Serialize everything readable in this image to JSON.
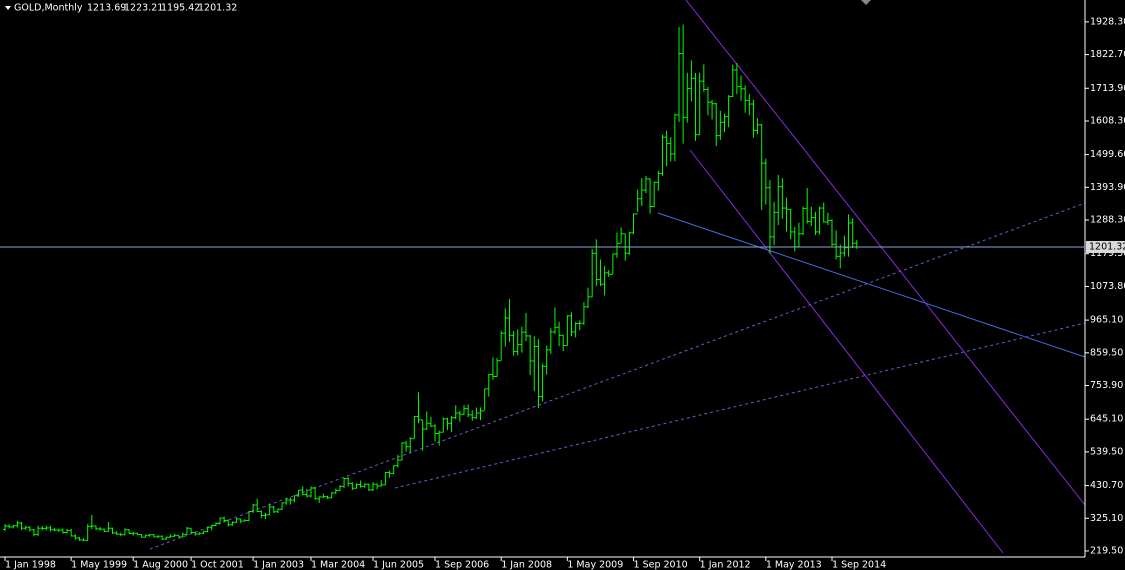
{
  "chart_data": {
    "type": "ohlc",
    "title": "GOLD,Monthly",
    "color": "#00ff00",
    "categories": [
      "1 Jan 1998",
      null,
      null,
      null,
      null,
      null,
      null,
      null,
      null,
      null,
      null,
      null,
      null,
      null,
      null,
      null,
      "1 May 1999",
      null,
      null,
      null,
      null,
      null,
      null,
      null,
      null,
      null,
      null,
      null,
      null,
      null,
      null,
      "1 Aug 2000",
      null,
      null,
      null,
      null,
      null,
      null,
      null,
      null,
      null,
      null,
      null,
      null,
      null,
      "1 Oct 2001",
      null,
      null,
      null,
      null,
      null,
      null,
      null,
      null,
      null,
      null,
      null,
      null,
      null,
      null,
      "1 Jan 2003",
      null,
      null,
      null,
      null,
      null,
      null,
      null,
      null,
      null,
      null,
      null,
      null,
      null,
      "1 Mar 2004",
      null,
      null,
      null,
      null,
      null,
      null,
      null,
      null,
      null,
      null,
      null,
      null,
      null,
      null,
      "1 Jun 2005",
      null,
      null,
      null,
      null,
      null,
      null,
      null,
      null,
      null,
      null,
      null,
      null,
      null,
      null,
      "1 Sep 2006",
      null,
      null,
      null,
      null,
      null,
      null,
      null,
      null,
      null,
      null,
      null,
      null,
      null,
      null,
      null,
      "1 Jan 2008",
      null,
      null,
      null,
      null,
      null,
      null,
      null,
      null,
      null,
      null,
      null,
      null,
      null,
      null,
      null,
      "1 May 2009",
      null,
      null,
      null,
      null,
      null,
      null,
      null,
      null,
      null,
      null,
      null,
      null,
      null,
      null,
      null,
      "1 Sep 2010",
      null,
      null,
      null,
      null,
      null,
      null,
      null,
      null,
      null,
      null,
      null,
      null,
      null,
      null,
      null,
      "1 Jan 2012",
      null,
      null,
      null,
      null,
      null,
      null,
      null,
      null,
      null,
      null,
      null,
      null,
      null,
      null,
      null,
      "1 May 2013",
      null,
      null,
      null,
      null,
      null,
      null,
      null,
      null,
      null,
      null,
      null,
      null,
      null,
      null,
      null,
      "1 Sep 2014",
      null,
      null,
      null,
      null,
      null,
      null
    ],
    "open": [
      289,
      300,
      297,
      301,
      310,
      293,
      296,
      288,
      273,
      293,
      292,
      294,
      288,
      287,
      287,
      279,
      286,
      268,
      261,
      255,
      254,
      299,
      300,
      291,
      290,
      283,
      293,
      278,
      274,
      272,
      288,
      276,
      277,
      273,
      264,
      270,
      272,
      265,
      267,
      258,
      264,
      267,
      270,
      265,
      273,
      293,
      279,
      274,
      277,
      282,
      296,
      302,
      309,
      326,
      318,
      304,
      312,
      323,
      316,
      318,
      347,
      368,
      347,
      334,
      336,
      361,
      346,
      354,
      375,
      384,
      384,
      398,
      416,
      402,
      397,
      423,
      388,
      394,
      395,
      391,
      407,
      415,
      428,
      453,
      438,
      422,
      434,
      428,
      435,
      417,
      435,
      429,
      433,
      473,
      470,
      495,
      513,
      568,
      556,
      582,
      654,
      643,
      613,
      632,
      623,
      599,
      603,
      646,
      632,
      650,
      665,
      661,
      679,
      659,
      650,
      665,
      672,
      743,
      789,
      783,
      834,
      923,
      972,
      916,
      864,
      886,
      926,
      914,
      833,
      880,
      718,
      816,
      869,
      927,
      942,
      916,
      883,
      979,
      927,
      954,
      955,
      1008,
      1040,
      1181,
      1096,
      1081,
      1118,
      1113,
      1179,
      1213,
      1244,
      1181,
      1247,
      1308,
      1357,
      1385,
      1421,
      1332,
      1410,
      1439,
      1556,
      1536,
      1502,
      1628,
      1826,
      1620,
      1713,
      1746,
      1564,
      1737,
      1710,
      1669,
      1664,
      1561,
      1604,
      1622,
      1687,
      1773,
      1719,
      1712,
      1675,
      1663,
      1578,
      1596,
      1472,
      1393,
      1234,
      1313,
      1396,
      1327,
      1323,
      1250,
      1202,
      1244,
      1326,
      1284,
      1296,
      1250,
      1327,
      1282,
      1287,
      1210,
      1171,
      1182,
      1199,
      1279,
      1213.69
    ],
    "high": [
      307,
      305,
      304,
      317,
      313,
      301,
      299,
      291,
      301,
      300,
      301,
      301,
      294,
      291,
      292,
      291,
      291,
      274,
      265,
      261,
      306,
      336,
      302,
      297,
      292,
      313,
      295,
      283,
      279,
      293,
      290,
      281,
      278,
      274,
      272,
      275,
      275,
      270,
      270,
      266,
      273,
      275,
      271,
      279,
      297,
      294,
      280,
      280,
      285,
      298,
      304,
      311,
      328,
      331,
      321,
      315,
      326,
      324,
      322,
      349,
      372,
      389,
      351,
      342,
      373,
      365,
      357,
      376,
      390,
      392,
      399,
      417,
      428,
      420,
      428,
      427,
      396,
      405,
      398,
      410,
      421,
      432,
      456,
      458,
      442,
      438,
      447,
      438,
      437,
      442,
      437,
      448,
      474,
      478,
      496,
      530,
      570,
      575,
      587,
      655,
      732,
      642,
      670,
      653,
      629,
      608,
      651,
      650,
      655,
      690,
      672,
      691,
      693,
      674,
      683,
      683,
      744,
      791,
      845,
      843,
      931,
      1003,
      1033,
      930,
      935,
      944,
      988,
      917,
      913,
      904,
      825,
      883,
      939,
      1006,
      960,
      918,
      981,
      990,
      959,
      964,
      1023,
      1070,
      1195,
      1226,
      1161,
      1140,
      1127,
      1180,
      1248,
      1265,
      1244,
      1250,
      1310,
      1387,
      1424,
      1431,
      1423,
      1412,
      1448,
      1564,
      1577,
      1556,
      1632,
      1912,
      1920,
      1764,
      1804,
      1763,
      1764,
      1791,
      1718,
      1676,
      1667,
      1641,
      1632,
      1692,
      1790,
      1796,
      1755,
      1723,
      1695,
      1677,
      1617,
      1598,
      1487,
      1417,
      1347,
      1434,
      1424,
      1361,
      1324,
      1267,
      1280,
      1332,
      1392,
      1331,
      1315,
      1332,
      1345,
      1312,
      1291,
      1255,
      1209,
      1238,
      1307,
      1294,
      1223.21
    ],
    "low": [
      283,
      292,
      292,
      295,
      287,
      287,
      282,
      267,
      268,
      286,
      286,
      282,
      283,
      281,
      276,
      276,
      266,
      256,
      252,
      251,
      252,
      290,
      287,
      285,
      280,
      281,
      274,
      271,
      268,
      270,
      275,
      269,
      270,
      263,
      263,
      266,
      263,
      261,
      255,
      255,
      262,
      265,
      264,
      264,
      271,
      276,
      269,
      272,
      274,
      280,
      286,
      299,
      305,
      312,
      299,
      301,
      311,
      309,
      315,
      317,
      342,
      345,
      325,
      322,
      335,
      342,
      342,
      352,
      369,
      369,
      377,
      394,
      399,
      392,
      392,
      385,
      375,
      391,
      387,
      390,
      404,
      413,
      423,
      428,
      416,
      421,
      424,
      424,
      413,
      413,
      418,
      428,
      432,
      456,
      468,
      489,
      512,
      540,
      535,
      583,
      632,
      543,
      611,
      620,
      573,
      560,
      602,
      610,
      603,
      645,
      637,
      659,
      652,
      640,
      646,
      642,
      675,
      718,
      772,
      783,
      835,
      880,
      895,
      850,
      851,
      860,
      897,
      787,
      736,
      681,
      703,
      789,
      856,
      920,
      881,
      865,
      883,
      913,
      909,
      932,
      950,
      1004,
      1039,
      1075,
      1075,
      1045,
      1105,
      1114,
      1166,
      1214,
      1157,
      1176,
      1243,
      1315,
      1334,
      1375,
      1309,
      1330,
      1383,
      1431,
      1462,
      1478,
      1478,
      1605,
      1535,
      1603,
      1672,
      1544,
      1563,
      1703,
      1627,
      1613,
      1527,
      1547,
      1572,
      1588,
      1686,
      1695,
      1673,
      1635,
      1627,
      1554,
      1566,
      1321,
      1338,
      1180,
      1207,
      1272,
      1292,
      1251,
      1227,
      1187,
      1202,
      1240,
      1277,
      1268,
      1240,
      1241,
      1280,
      1272,
      1204,
      1161,
      1132,
      1170,
      1170,
      1198,
      1195.42
    ],
    "close": [
      300,
      297,
      301,
      310,
      293,
      296,
      288,
      273,
      293,
      292,
      294,
      288,
      287,
      287,
      279,
      286,
      268,
      261,
      255,
      254,
      299,
      300,
      291,
      290,
      283,
      293,
      278,
      274,
      272,
      288,
      276,
      277,
      273,
      264,
      270,
      272,
      265,
      267,
      258,
      264,
      267,
      270,
      265,
      273,
      293,
      279,
      274,
      277,
      282,
      296,
      302,
      309,
      326,
      318,
      304,
      312,
      323,
      316,
      318,
      347,
      368,
      347,
      334,
      336,
      361,
      346,
      354,
      375,
      384,
      384,
      398,
      416,
      402,
      397,
      423,
      388,
      394,
      395,
      391,
      407,
      415,
      428,
      453,
      438,
      422,
      434,
      428,
      435,
      417,
      435,
      429,
      433,
      473,
      470,
      495,
      513,
      568,
      556,
      582,
      654,
      643,
      613,
      632,
      623,
      599,
      603,
      646,
      632,
      650,
      665,
      661,
      679,
      659,
      650,
      665,
      672,
      743,
      789,
      783,
      834,
      923,
      972,
      916,
      864,
      886,
      926,
      914,
      833,
      880,
      718,
      816,
      869,
      927,
      942,
      916,
      883,
      979,
      927,
      954,
      955,
      1008,
      1040,
      1181,
      1096,
      1081,
      1118,
      1113,
      1179,
      1213,
      1244,
      1181,
      1247,
      1308,
      1357,
      1385,
      1421,
      1332,
      1410,
      1439,
      1556,
      1536,
      1502,
      1628,
      1826,
      1620,
      1713,
      1746,
      1564,
      1737,
      1710,
      1669,
      1664,
      1561,
      1604,
      1622,
      1687,
      1773,
      1719,
      1712,
      1675,
      1663,
      1578,
      1596,
      1472,
      1393,
      1234,
      1313,
      1396,
      1327,
      1323,
      1250,
      1202,
      1244,
      1326,
      1284,
      1296,
      1250,
      1327,
      1282,
      1287,
      1210,
      1171,
      1182,
      1199,
      1279,
      1213,
      1201.32
    ],
    "ylim": [
      200,
      1999
    ],
    "yticks": [
      {
        "value": 1928.3,
        "label": "1928.30"
      },
      {
        "value": 1822.7,
        "label": "1822.70"
      },
      {
        "value": 1713.9,
        "label": "1713.90"
      },
      {
        "value": 1608.3,
        "label": "1608.30"
      },
      {
        "value": 1499.6,
        "label": "1499.60"
      },
      {
        "value": 1393.9,
        "label": "1393.90"
      },
      {
        "value": 1288.3,
        "label": "1288.30"
      },
      {
        "value": 1179.5,
        "label": "1179.50"
      },
      {
        "value": 1073.8,
        "label": "1073.80"
      },
      {
        "value": 965.1,
        "label": "965.10"
      },
      {
        "value": 859.5,
        "label": "859.50"
      },
      {
        "value": 753.9,
        "label": "753.90"
      },
      {
        "value": 645.1,
        "label": "645.10"
      },
      {
        "value": 539.5,
        "label": "539.50"
      },
      {
        "value": 430.7,
        "label": "430.70"
      },
      {
        "value": 325.1,
        "label": "325.10"
      },
      {
        "value": 219.5,
        "label": "219.50"
      }
    ]
  }
}
